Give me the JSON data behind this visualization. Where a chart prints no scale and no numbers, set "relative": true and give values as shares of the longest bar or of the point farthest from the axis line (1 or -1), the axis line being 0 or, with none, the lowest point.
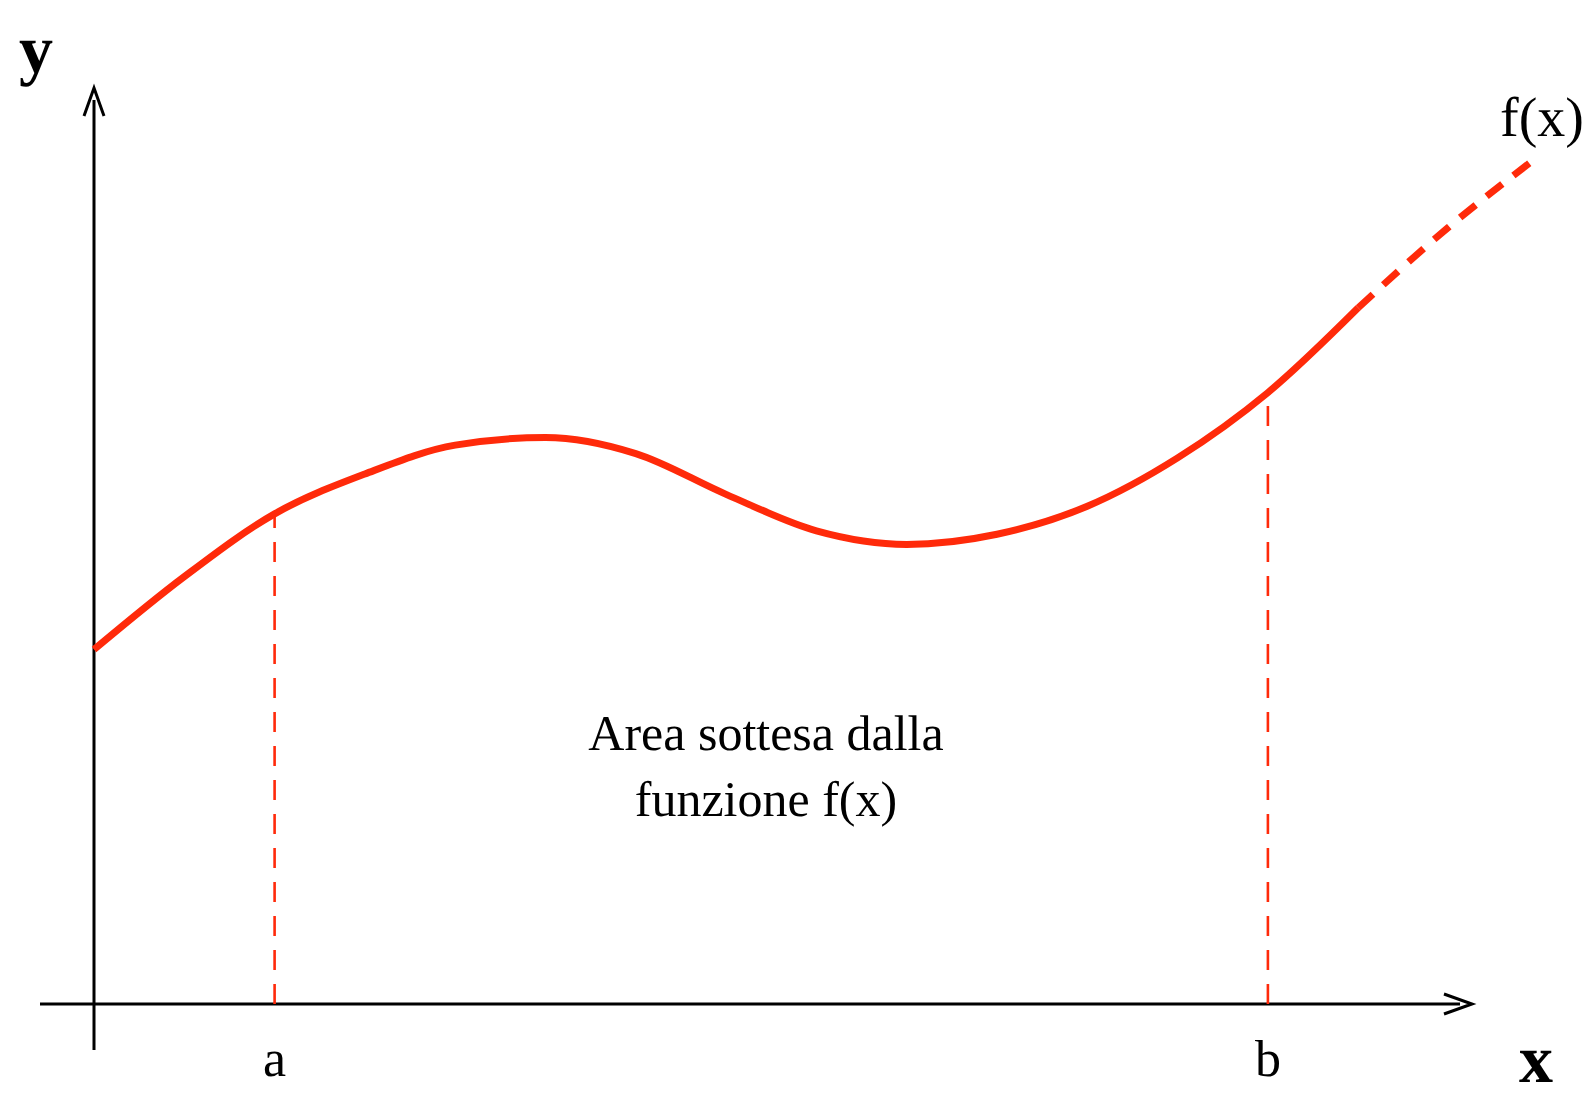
{
  "chart_data": {
    "type": "line",
    "relative": true,
    "xlabel": "x",
    "ylabel": "y",
    "categories": [
      null,
      null,
      "a",
      null,
      null,
      null,
      null,
      null,
      null,
      null,
      null,
      null,
      null,
      "b",
      null,
      null,
      null
    ],
    "series": [
      {
        "color": "#ff2a0a",
        "line_style": "solid",
        "values": [
          0.418,
          0.504,
          0.578,
          0.625,
          0.659,
          0.668,
          0.649,
          0.601,
          0.558,
          0.542,
          0.554,
          0.587,
          0.644,
          0.721,
          0.821,
          null,
          null
        ]
      },
      {
        "color": "#ff2a0a",
        "line_style": "dashed",
        "values": [
          null,
          null,
          null,
          null,
          null,
          null,
          null,
          null,
          null,
          null,
          null,
          null,
          null,
          null,
          0.821,
          0.916,
          1
        ]
      }
    ],
    "ref_lines": [
      {
        "axis": "x",
        "value": "a",
        "color": "#ff2a0a",
        "line_style": "dashed"
      },
      {
        "axis": "x",
        "value": "b",
        "color": "#ff2a0a",
        "line_style": "dashed"
      }
    ],
    "annotations": [
      "Area sottesa dalla funzione f(x)",
      "f(x)"
    ],
    "marker": "none"
  }
}
